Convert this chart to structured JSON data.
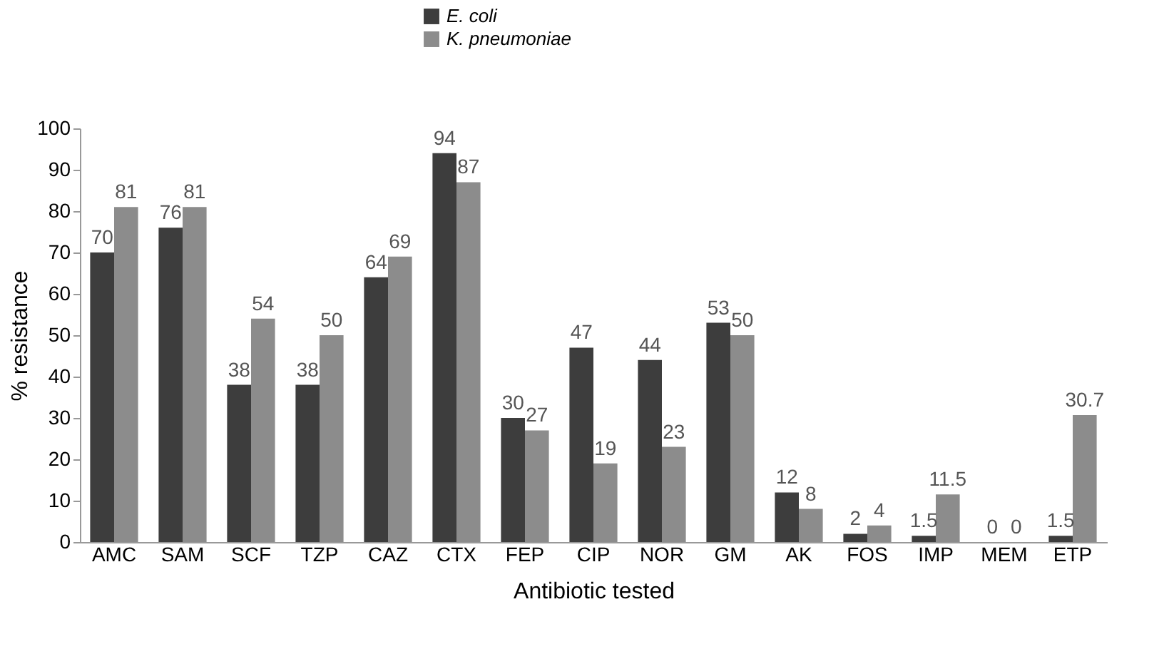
{
  "chart_data": {
    "type": "bar",
    "xlabel": "Antibiotic tested",
    "ylabel": "% resistance",
    "categories": [
      "AMC",
      "SAM",
      "SCF",
      "TZP",
      "CAZ",
      "CTX",
      "FEP",
      "CIP",
      "NOR",
      "GM",
      "AK",
      "FOS",
      "IMP",
      "MEM",
      "ETP"
    ],
    "series": [
      {
        "name": "E. coli",
        "color": "#3d3d3d",
        "values": [
          70,
          76,
          38,
          38,
          64,
          94,
          30,
          47,
          44,
          53,
          12,
          2,
          1.5,
          0,
          1.5
        ]
      },
      {
        "name": "K. pneumoniae",
        "color": "#8c8c8c",
        "values": [
          81,
          81,
          54,
          50,
          69,
          87,
          27,
          19,
          23,
          50,
          8,
          4,
          11.5,
          0,
          30.7
        ]
      }
    ],
    "ylim": [
      0,
      100
    ],
    "yticks": [
      0,
      10,
      20,
      30,
      40,
      50,
      60,
      70,
      80,
      90,
      100
    ],
    "data_labels": true,
    "legend": "top",
    "grid": false
  }
}
